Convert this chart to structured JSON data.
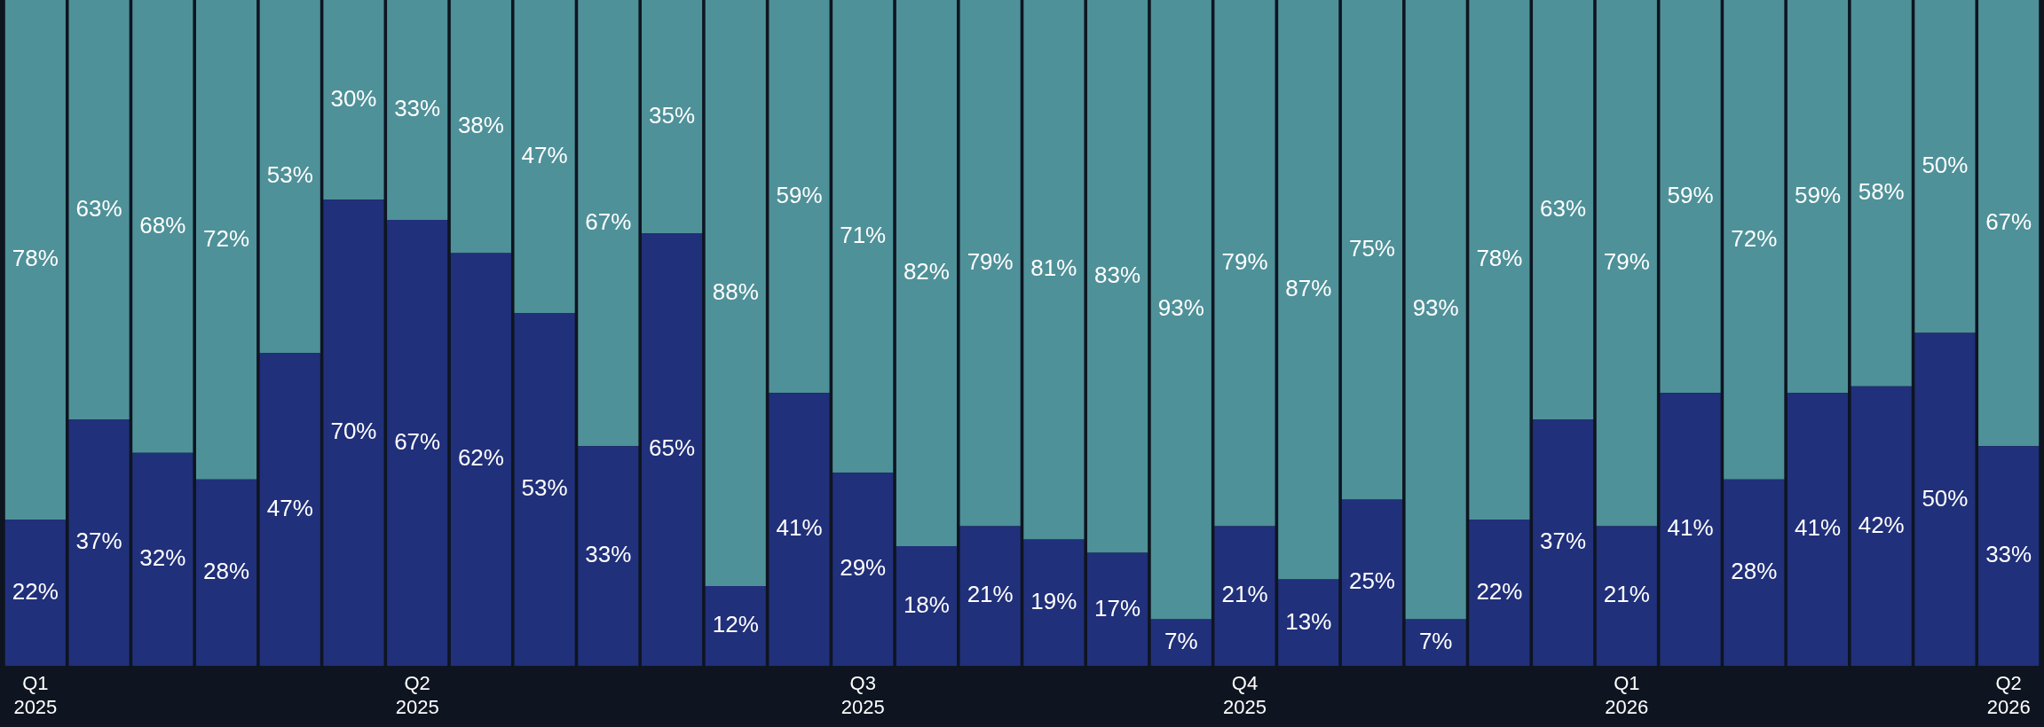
{
  "chart_data": {
    "type": "bar",
    "stacked": true,
    "legend": false,
    "categories": [
      "Q1 2025",
      null,
      null,
      null,
      null,
      null,
      "Q2 2025",
      null,
      null,
      null,
      null,
      null,
      null,
      "Q3 2025",
      null,
      null,
      null,
      null,
      null,
      "Q4 2025",
      null,
      null,
      null,
      null,
      null,
      "Q1 2026",
      null,
      null,
      null,
      null,
      null,
      "Q2 2026"
    ],
    "series": [
      {
        "color": "#21307a",
        "values": [
          22,
          37,
          32,
          28,
          47,
          70,
          67,
          62,
          53,
          33,
          65,
          12,
          41,
          29,
          18,
          21,
          19,
          17,
          7,
          21,
          13,
          25,
          7,
          22,
          37,
          21,
          41,
          28,
          41,
          42,
          50,
          33
        ],
        "value_labels": [
          "22%",
          "37%",
          "32%",
          "28%",
          "47%",
          "70%",
          "67%",
          "62%",
          "53%",
          "33%",
          "65%",
          "12%",
          "41%",
          "29%",
          "18%",
          "21%",
          "19%",
          "17%",
          "7%",
          "21%",
          "13%",
          "25%",
          "7%",
          "22%",
          "37%",
          "21%",
          "41%",
          "28%",
          "41%",
          "42%",
          "50%",
          "33%"
        ]
      },
      {
        "color": "#4f9199",
        "values": [
          78,
          63,
          68,
          72,
          53,
          30,
          33,
          38,
          47,
          67,
          35,
          88,
          59,
          71,
          82,
          79,
          81,
          83,
          93,
          79,
          87,
          75,
          93,
          78,
          63,
          79,
          59,
          72,
          59,
          58,
          50,
          67
        ],
        "value_labels": [
          "78%",
          "63%",
          "68%",
          "72%",
          "53%",
          "30%",
          "33%",
          "38%",
          "47%",
          "67%",
          "35%",
          "88%",
          "59%",
          "71%",
          "82%",
          "79%",
          "81%",
          "83%",
          "93%",
          "79%",
          "87%",
          "75%",
          "93%",
          "78%",
          "63%",
          "79%",
          "59%",
          "72%",
          "59%",
          "58%",
          "50%",
          "67%"
        ]
      }
    ]
  }
}
